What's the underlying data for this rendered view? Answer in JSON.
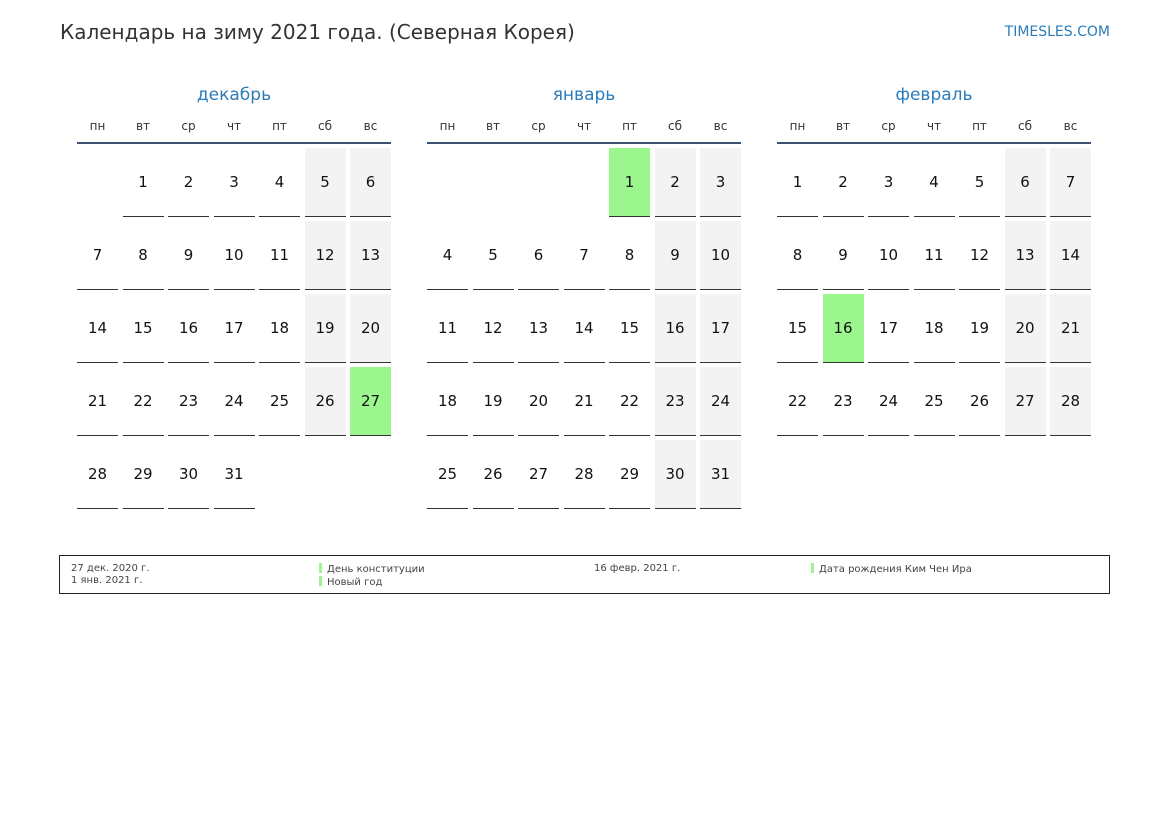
{
  "header": {
    "title": "Календарь на зиму 2021 года. (Северная Корея)",
    "site": "TIMESLES.COM"
  },
  "weekdays": [
    "пн",
    "вт",
    "ср",
    "чт",
    "пт",
    "сб",
    "вс"
  ],
  "colors": {
    "accent": "#2b7bb9",
    "holiday": "#9cf68e",
    "weekend": "#f3f3f3"
  },
  "months": [
    {
      "name": "декабрь",
      "start_offset": 1,
      "days_in_month": 31,
      "holidays": [
        27
      ]
    },
    {
      "name": "январь",
      "start_offset": 4,
      "days_in_month": 31,
      "holidays": [
        1
      ]
    },
    {
      "name": "февраль",
      "start_offset": 0,
      "days_in_month": 28,
      "holidays": [
        16
      ]
    }
  ],
  "legend": [
    {
      "dates": [
        "27 дек. 2020 г.",
        "1 янв. 2021 г."
      ],
      "names": [
        "День конституции",
        "Новый год"
      ]
    },
    {
      "dates": [
        "16 февр. 2021 г."
      ],
      "names": [
        "Дата рождения Ким Чен Ира"
      ]
    }
  ]
}
